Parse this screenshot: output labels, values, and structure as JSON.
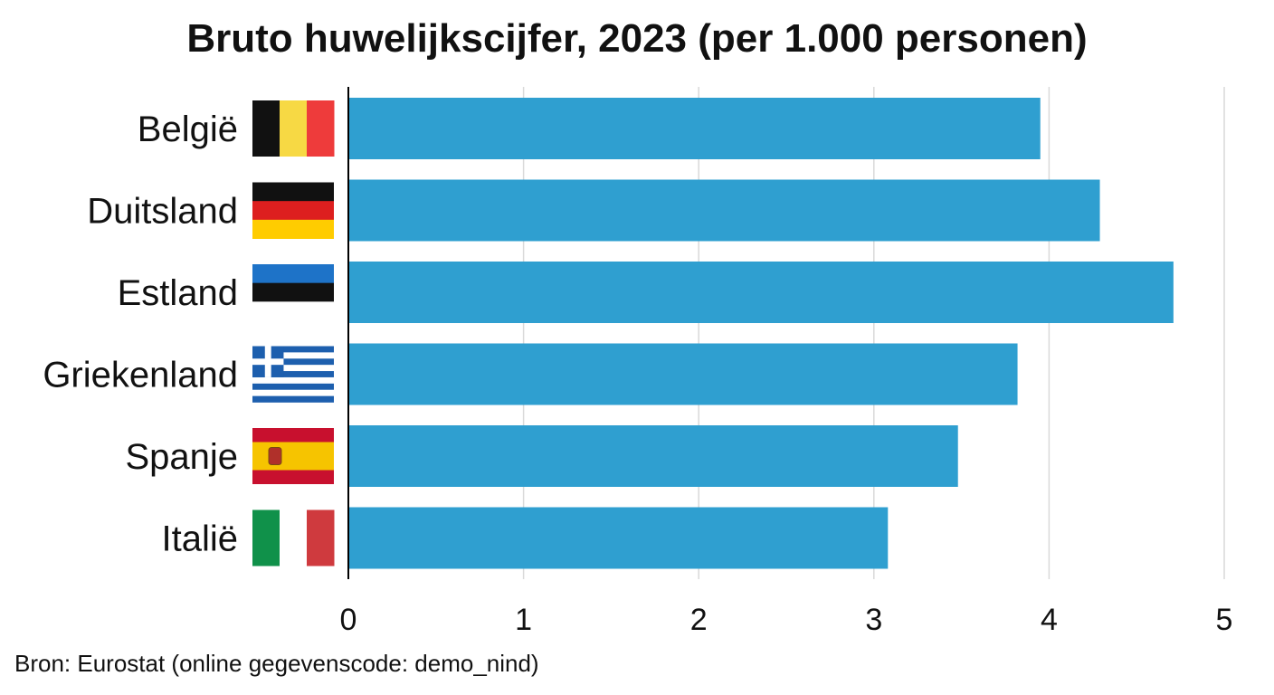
{
  "chart_data": {
    "type": "bar",
    "orientation": "horizontal",
    "title": "Bruto huwelijkscijfer, 2023 (per 1.000 personen)",
    "categories": [
      "België",
      "Duitsland",
      "Estland",
      "Griekenland",
      "Spanje",
      "Italië"
    ],
    "flags": [
      "belgium-flag-icon",
      "germany-flag-icon",
      "estonia-flag-icon",
      "greece-flag-icon",
      "spain-flag-icon",
      "italy-flag-icon"
    ],
    "values": [
      3.95,
      4.29,
      4.71,
      3.82,
      3.48,
      3.08
    ],
    "xlim": [
      0,
      5
    ],
    "xticks": [
      "0",
      "1",
      "2",
      "3",
      "4",
      "5"
    ],
    "grid": true,
    "bar_color": "#2f9fd0",
    "source": "Bron: Eurostat (online gegevenscode: demo_nind)"
  }
}
